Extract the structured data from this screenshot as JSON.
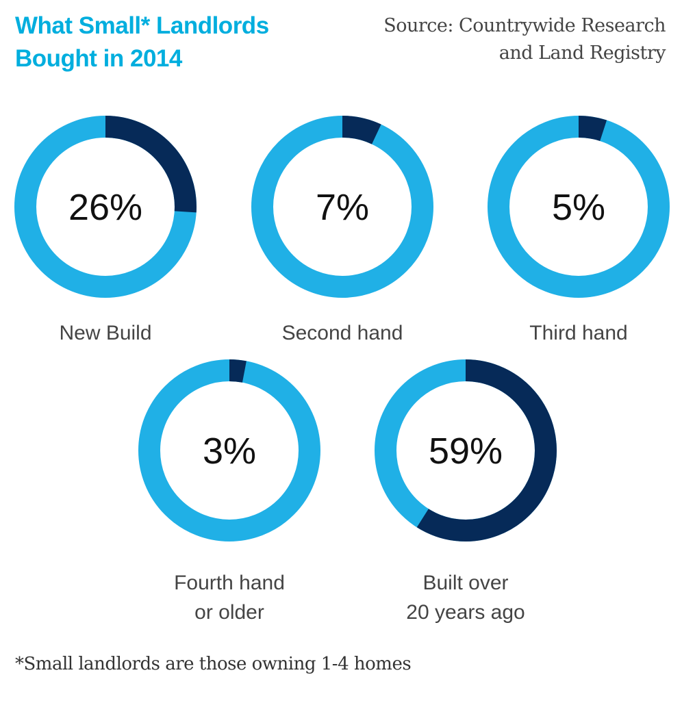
{
  "title_line1": "What Small* Landlords",
  "title_line2": "Bought in 2014",
  "source_line1": "Source: Countrywide Research",
  "source_line2": "and Land Registry",
  "footnote": "*Small landlords are those owning 1-4 homes",
  "colors": {
    "accent": "#00aede",
    "ring": "#20b0e6",
    "highlight": "#062a58"
  },
  "chart_data": {
    "type": "pie",
    "subtype": "donut",
    "title": "What Small* Landlords Bought in 2014",
    "items": [
      {
        "label": "New Build",
        "label_lines": [
          "New Build"
        ],
        "value": 26,
        "text": "26%"
      },
      {
        "label": "Second hand",
        "label_lines": [
          "Second hand"
        ],
        "value": 7,
        "text": "7%"
      },
      {
        "label": "Third hand",
        "label_lines": [
          "Third hand"
        ],
        "value": 5,
        "text": "5%"
      },
      {
        "label": "Fourth hand or older",
        "label_lines": [
          "Fourth hand",
          "or older"
        ],
        "value": 3,
        "text": "3%"
      },
      {
        "label": "Built over 20 years ago",
        "label_lines": [
          "Built over",
          "20 years ago"
        ],
        "value": 59,
        "text": "59%"
      }
    ]
  }
}
